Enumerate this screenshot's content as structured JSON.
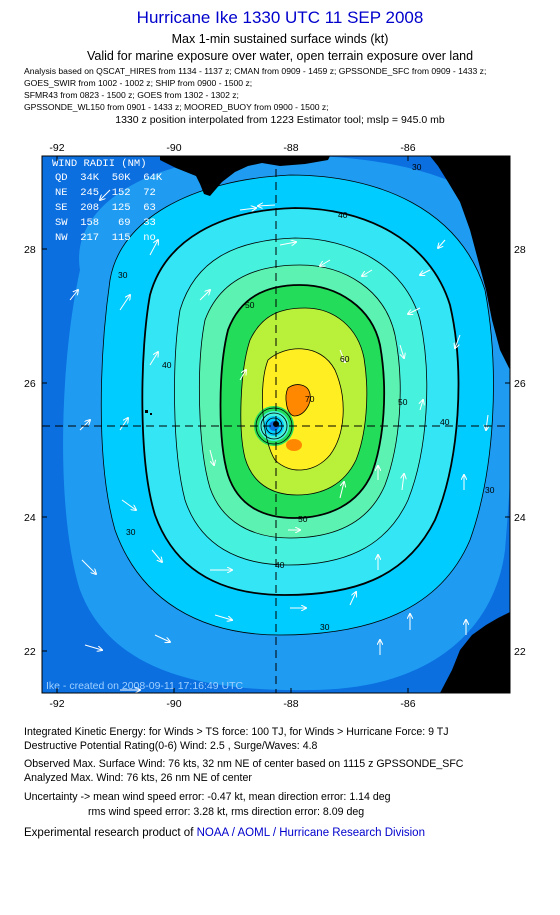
{
  "header": {
    "title": "Hurricane Ike 1330 UTC 11 SEP 2008",
    "subtitle": "Max 1-min sustained surface winds (kt)",
    "validity": "Valid for marine exposure over water, open terrain exposure over land",
    "sources": [
      "Analysis based on  QSCAT_HIRES from 1134 - 1137 z;  CMAN from 0909 - 1459 z;  GPSSONDE_SFC from 0909 - 1433 z;",
      "GOES_SWIR from 1002 - 1002 z;  SHIP from 0900 - 1500 z;",
      "SFMR43 from 0823 - 1500 z;  GOES from 1302 - 1302 z;",
      "GPSSONDE_WL150 from 0901 - 1433 z;  MOORED_BUOY from 0900 - 1500 z;"
    ],
    "position_note": "1330 z position interpolated from 1223 Estimator tool; mslp = 945.0 mb"
  },
  "map": {
    "lon_ticks": [
      "-92",
      "-90",
      "-88",
      "-86"
    ],
    "lat_ticks": [
      "28",
      "26",
      "24",
      "22"
    ],
    "center": {
      "lon": -88.0,
      "lat": 25.4
    },
    "contour_labels": [
      "30",
      "40",
      "50",
      "60",
      "70"
    ],
    "wind_radii": {
      "title": "WIND RADII (NM)",
      "header": "QD  34K  50K  64K",
      "rows": [
        "NE  245  152  72",
        "SE  208  125  63",
        "SW  158   69  33",
        "NW  217  115  no"
      ]
    },
    "credit": "Ike - created on 2008-09-11 17:16:49 UTC",
    "colors": {
      "ocean_deep": "#0b6fe0",
      "ocean": "#1f9cf2",
      "cyan": "#00ccff",
      "lt_cyan": "#33e5f5",
      "aqua": "#46f2dd",
      "green_lt": "#5cf2b2",
      "green": "#22dc5a",
      "yellow_green": "#b8f03a",
      "yellow": "#ffee22",
      "orange": "#ff8800",
      "land": "#000000"
    }
  },
  "footer": {
    "ike": "Integrated Kinetic Energy:  for Winds > TS force: 100 TJ,  for Winds > Hurricane Force: 9 TJ",
    "dpr": "Destructive Potential Rating(0-6)   Wind: 2.5 , Surge/Waves: 4.8",
    "observed": "Observed Max. Surface Wind: 76 kts, 32 nm NE of center based on 1115 z GPSSONDE_SFC",
    "analyzed": "Analyzed Max. Wind: 76 kts, 26 nm NE of center",
    "uncertainty1": "Uncertainty -> mean wind speed error:  -0.47 kt,     mean direction error: 1.14 deg",
    "uncertainty2": "rms wind speed error: 3.28 kt,    rms direction error: 8.09 deg",
    "product_prefix": "Experimental research product of",
    "product_org": "NOAA / AOML / Hurricane Research Division"
  }
}
